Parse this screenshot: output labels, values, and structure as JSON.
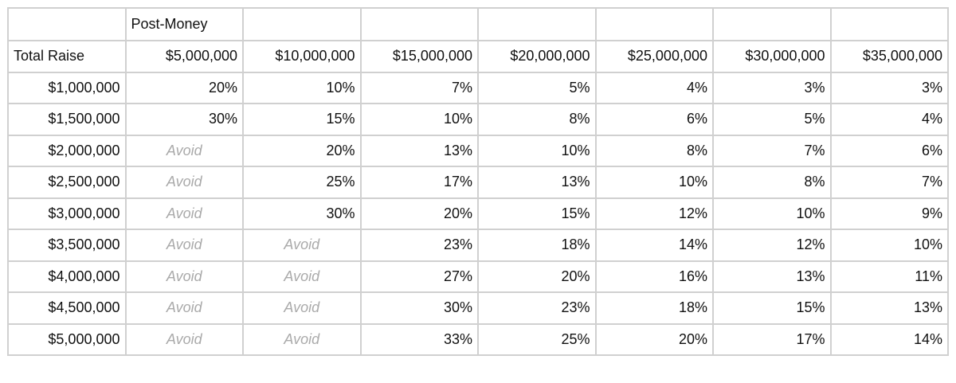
{
  "table": {
    "super_header": "Post-Money",
    "row_header_label": "Total Raise",
    "columns": [
      "$5,000,000",
      "$10,000,000",
      "$15,000,000",
      "$20,000,000",
      "$25,000,000",
      "$30,000,000",
      "$35,000,000"
    ],
    "rows": [
      {
        "label": "$1,000,000",
        "cells": [
          "20%",
          "10%",
          "7%",
          "5%",
          "4%",
          "3%",
          "3%"
        ]
      },
      {
        "label": "$1,500,000",
        "cells": [
          "30%",
          "15%",
          "10%",
          "8%",
          "6%",
          "5%",
          "4%"
        ]
      },
      {
        "label": "$2,000,000",
        "cells": [
          "Avoid",
          "20%",
          "13%",
          "10%",
          "8%",
          "7%",
          "6%"
        ]
      },
      {
        "label": "$2,500,000",
        "cells": [
          "Avoid",
          "25%",
          "17%",
          "13%",
          "10%",
          "8%",
          "7%"
        ]
      },
      {
        "label": "$3,000,000",
        "cells": [
          "Avoid",
          "30%",
          "20%",
          "15%",
          "12%",
          "10%",
          "9%"
        ]
      },
      {
        "label": "$3,500,000",
        "cells": [
          "Avoid",
          "Avoid",
          "23%",
          "18%",
          "14%",
          "12%",
          "10%"
        ]
      },
      {
        "label": "$4,000,000",
        "cells": [
          "Avoid",
          "Avoid",
          "27%",
          "20%",
          "16%",
          "13%",
          "11%"
        ]
      },
      {
        "label": "$4,500,000",
        "cells": [
          "Avoid",
          "Avoid",
          "30%",
          "23%",
          "18%",
          "15%",
          "13%"
        ]
      },
      {
        "label": "$5,000,000",
        "cells": [
          "Avoid",
          "Avoid",
          "33%",
          "25%",
          "20%",
          "17%",
          "14%"
        ]
      }
    ]
  }
}
